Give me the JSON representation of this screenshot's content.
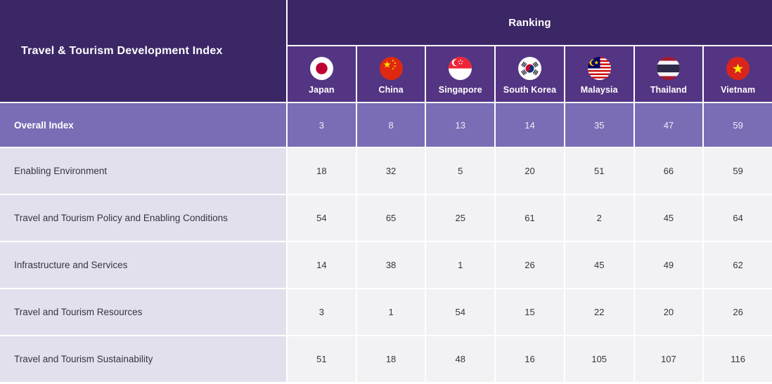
{
  "chart_data": {
    "type": "table",
    "title": "Travel & Tourism Development Index",
    "ranking_header": "Ranking",
    "columns": [
      {
        "label": "Japan",
        "flag_icon": "japan-flag-icon"
      },
      {
        "label": "China",
        "flag_icon": "china-flag-icon"
      },
      {
        "label": "Singapore",
        "flag_icon": "singapore-flag-icon"
      },
      {
        "label": "South Korea",
        "flag_icon": "south-korea-flag-icon"
      },
      {
        "label": "Malaysia",
        "flag_icon": "malaysia-flag-icon"
      },
      {
        "label": "Thailand",
        "flag_icon": "thailand-flag-icon"
      },
      {
        "label": "Vietnam",
        "flag_icon": "vietnam-flag-icon"
      }
    ],
    "rows": [
      {
        "label": "Overall Index",
        "highlight": true,
        "values": [
          3,
          8,
          13,
          14,
          35,
          47,
          59
        ]
      },
      {
        "label": "Enabling Environment",
        "highlight": false,
        "values": [
          18,
          32,
          5,
          20,
          51,
          66,
          59
        ]
      },
      {
        "label": "Travel and Tourism Policy and Enabling Conditions",
        "highlight": false,
        "values": [
          54,
          65,
          25,
          61,
          2,
          45,
          64
        ]
      },
      {
        "label": "Infrastructure and Services",
        "highlight": false,
        "values": [
          14,
          38,
          1,
          26,
          45,
          49,
          62
        ]
      },
      {
        "label": "Travel and Tourism Resources",
        "highlight": false,
        "values": [
          3,
          1,
          54,
          15,
          22,
          20,
          26
        ]
      },
      {
        "label": "Travel and Tourism Sustainability",
        "highlight": false,
        "values": [
          51,
          18,
          48,
          16,
          105,
          107,
          116
        ]
      }
    ]
  },
  "colors": {
    "dark_purple": "#3b2766",
    "country_header_purple": "#543583",
    "overall_row_purple": "#7a6db5",
    "label_column_lavender": "#e3e0ee",
    "data_cell_gray": "#f2f1f4",
    "grid_line_white": "#ffffff",
    "header_text": "#ffffff",
    "body_text": "#39333f"
  }
}
